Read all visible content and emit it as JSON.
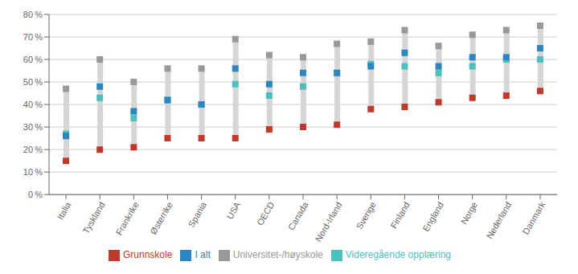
{
  "chart_data": {
    "type": "dumbbell",
    "categories": [
      "Italia",
      "Tyskland",
      "Frankrike",
      "Østerrike",
      "Spania",
      "USA",
      "OECD",
      "Canada",
      "Nord-Irland",
      "Sverige",
      "Finland",
      "England",
      "Norge",
      "Nederland",
      "Danmark"
    ],
    "series": [
      {
        "name": "Grunnskole",
        "color": "#c0392b",
        "marker": "square",
        "values": [
          15,
          20,
          21,
          25,
          25,
          25,
          29,
          30,
          31,
          38,
          39,
          41,
          43,
          44,
          46
        ]
      },
      {
        "name": "Videregående opplæring",
        "color": "#4dbfbd",
        "marker": "square",
        "values": [
          27,
          43,
          34,
          42,
          40,
          49,
          44,
          48,
          54,
          58,
          57,
          54,
          57,
          60,
          60
        ]
      },
      {
        "name": "Universitet-/høyskole",
        "color": "#999999",
        "marker": "square",
        "values": [
          47,
          60,
          50,
          56,
          56,
          69,
          62,
          61,
          67,
          68,
          73,
          66,
          71,
          73,
          75
        ]
      },
      {
        "name": "I alt",
        "color": "#2e86c1",
        "marker": "square",
        "values": [
          26,
          48,
          37,
          42,
          40,
          56,
          49,
          54,
          54,
          57,
          63,
          57,
          61,
          61,
          65
        ]
      }
    ],
    "color": "#d5d5d5",
    "ylim": [
      0,
      80
    ],
    "yticks": [
      {
        "value": 0,
        "label": "0 %"
      },
      {
        "value": 10,
        "label": "10 %"
      },
      {
        "value": 20,
        "label": "20 %"
      },
      {
        "value": 30,
        "label": "30 %"
      },
      {
        "value": 40,
        "label": "40 %"
      },
      {
        "value": 50,
        "label": "50 %"
      },
      {
        "value": 60,
        "label": "60 %"
      },
      {
        "value": 70,
        "label": "70 %"
      },
      {
        "value": 80,
        "label": "80 %"
      }
    ],
    "grid": true,
    "legend": "bottom"
  }
}
